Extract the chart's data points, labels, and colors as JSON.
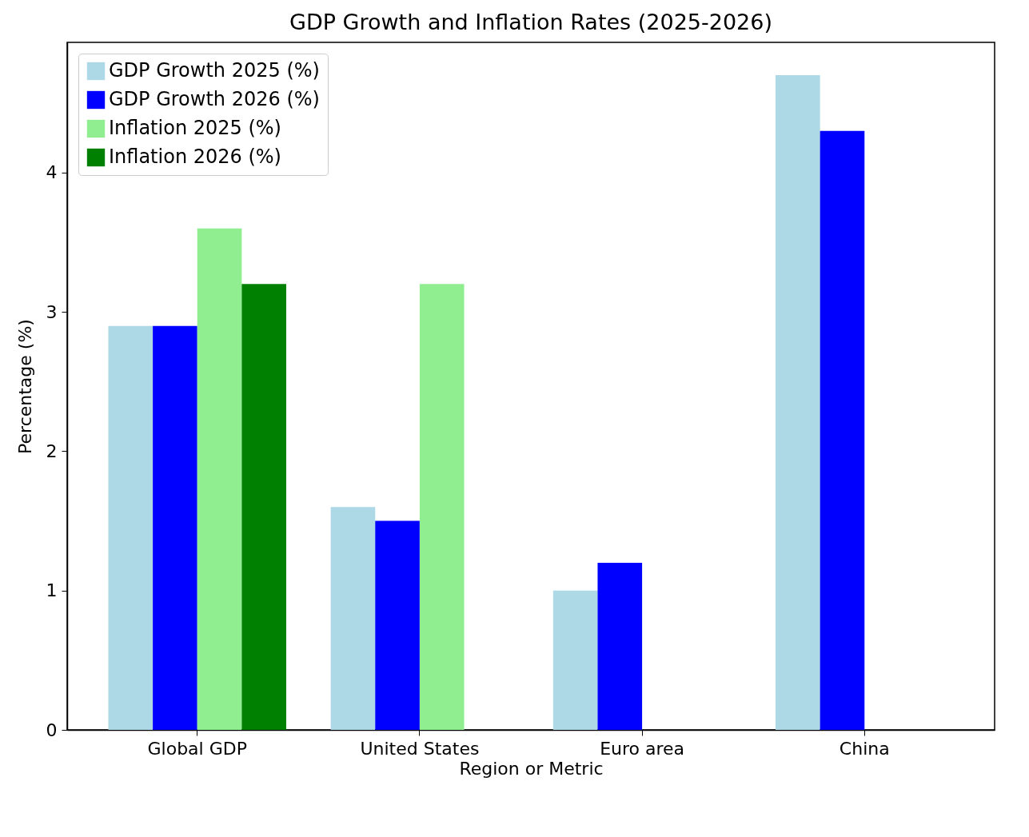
{
  "chart_data": {
    "type": "bar",
    "title": "GDP Growth and Inflation Rates (2025-2026)",
    "xlabel": "Region or Metric",
    "ylabel": "Percentage (%)",
    "categories": [
      "Global GDP",
      "United States",
      "Euro area",
      "China"
    ],
    "series": [
      {
        "name": "GDP Growth 2025 (%)",
        "color": "#add8e6",
        "values": [
          2.9,
          1.6,
          1.0,
          4.7
        ]
      },
      {
        "name": "GDP Growth 2026 (%)",
        "color": "#0000ff",
        "values": [
          2.9,
          1.5,
          1.2,
          4.3
        ]
      },
      {
        "name": "Inflation 2025 (%)",
        "color": "#90ee90",
        "values": [
          3.6,
          3.2,
          null,
          null
        ]
      },
      {
        "name": "Inflation 2026 (%)",
        "color": "#008000",
        "values": [
          3.2,
          null,
          null,
          null
        ]
      }
    ],
    "ylim": [
      0,
      4.935
    ],
    "yticks": [
      0,
      1,
      2,
      3,
      4
    ],
    "grid": false,
    "legend": "top left"
  }
}
